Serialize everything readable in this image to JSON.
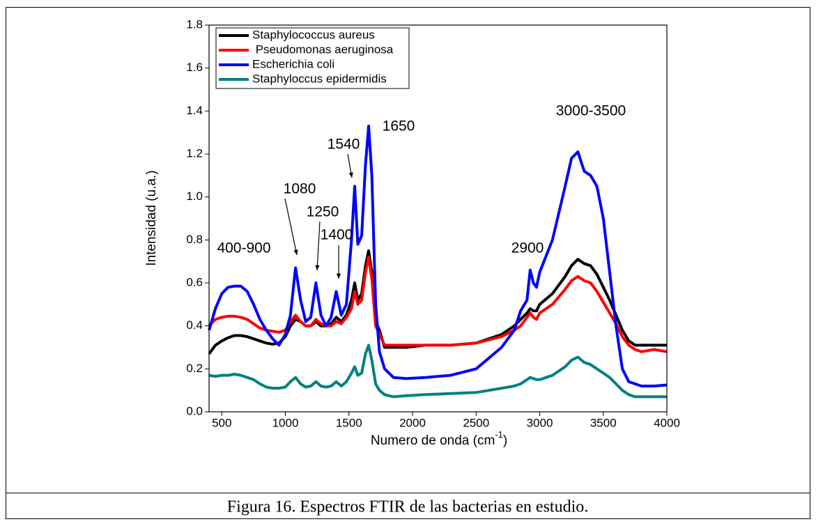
{
  "chart_data": {
    "type": "line",
    "caption": "Figura 16. Espectros FTIR de las bacterias en estudio.",
    "y_label": "Intensidad (u.a.)",
    "x_label": {
      "text": "Numero de onda (cm",
      "superscript": "-1",
      "suffix": ")"
    },
    "annotations": [
      "400-900",
      "1080",
      "1250",
      "1400",
      "1540",
      "1650",
      "2900",
      "3000-3500"
    ],
    "xlim": [
      400,
      4000
    ],
    "xticks": [
      500,
      1000,
      1500,
      2000,
      2500,
      3000,
      3500,
      4000
    ],
    "ylim": [
      0,
      1.8
    ],
    "yticks": [
      {
        "value": 0,
        "label": "0.0"
      },
      0.2,
      0.4,
      0.6,
      0.8,
      {
        "value": 1,
        "label": "1.0"
      },
      1.2,
      1.4,
      1.6,
      1.8
    ],
    "legend": "upper left",
    "x": [
      400,
      450,
      500,
      550,
      600,
      650,
      700,
      750,
      800,
      850,
      900,
      950,
      1000,
      1040,
      1080,
      1120,
      1160,
      1200,
      1240,
      1280,
      1320,
      1360,
      1400,
      1440,
      1480,
      1520,
      1545,
      1570,
      1600,
      1630,
      1655,
      1680,
      1710,
      1740,
      1780,
      1850,
      1950,
      2100,
      2300,
      2500,
      2700,
      2800,
      2850,
      2900,
      2925,
      2950,
      2975,
      3000,
      3100,
      3200,
      3250,
      3300,
      3350,
      3400,
      3450,
      3500,
      3550,
      3600,
      3650,
      3700,
      3750,
      3800,
      3900,
      4000
    ],
    "series": [
      {
        "name": "Staphylococcus aureus",
        "color": "#000000",
        "values": [
          0.27,
          0.31,
          0.33,
          0.345,
          0.355,
          0.355,
          0.35,
          0.34,
          0.33,
          0.32,
          0.315,
          0.32,
          0.35,
          0.4,
          0.43,
          0.42,
          0.4,
          0.4,
          0.42,
          0.4,
          0.4,
          0.41,
          0.44,
          0.42,
          0.45,
          0.52,
          0.6,
          0.52,
          0.55,
          0.68,
          0.75,
          0.65,
          0.42,
          0.38,
          0.3,
          0.3,
          0.3,
          0.31,
          0.31,
          0.32,
          0.36,
          0.4,
          0.43,
          0.46,
          0.48,
          0.47,
          0.47,
          0.5,
          0.55,
          0.63,
          0.68,
          0.71,
          0.69,
          0.68,
          0.64,
          0.58,
          0.52,
          0.45,
          0.38,
          0.33,
          0.31,
          0.31,
          0.31,
          0.31
        ]
      },
      {
        "name": " Pseudomonas aeruginosa",
        "color": "#ff0000",
        "values": [
          0.4,
          0.43,
          0.44,
          0.445,
          0.445,
          0.44,
          0.43,
          0.41,
          0.39,
          0.38,
          0.375,
          0.37,
          0.38,
          0.42,
          0.45,
          0.42,
          0.4,
          0.4,
          0.43,
          0.41,
          0.4,
          0.4,
          0.42,
          0.41,
          0.44,
          0.48,
          0.56,
          0.5,
          0.52,
          0.65,
          0.72,
          0.62,
          0.4,
          0.36,
          0.31,
          0.31,
          0.31,
          0.31,
          0.31,
          0.32,
          0.35,
          0.38,
          0.4,
          0.44,
          0.46,
          0.44,
          0.43,
          0.46,
          0.5,
          0.57,
          0.61,
          0.63,
          0.61,
          0.6,
          0.56,
          0.51,
          0.46,
          0.41,
          0.35,
          0.31,
          0.29,
          0.28,
          0.29,
          0.28
        ]
      },
      {
        "name": "Escherichia coli",
        "color": "#0000ff",
        "values": [
          0.38,
          0.48,
          0.55,
          0.58,
          0.585,
          0.585,
          0.56,
          0.5,
          0.43,
          0.38,
          0.34,
          0.31,
          0.36,
          0.45,
          0.67,
          0.52,
          0.42,
          0.44,
          0.6,
          0.45,
          0.4,
          0.44,
          0.56,
          0.45,
          0.5,
          0.8,
          1.05,
          0.78,
          0.82,
          1.15,
          1.33,
          1.1,
          0.5,
          0.28,
          0.2,
          0.16,
          0.155,
          0.16,
          0.17,
          0.2,
          0.3,
          0.38,
          0.47,
          0.52,
          0.66,
          0.6,
          0.58,
          0.65,
          0.8,
          1.05,
          1.18,
          1.21,
          1.12,
          1.1,
          1.05,
          0.9,
          0.65,
          0.4,
          0.2,
          0.14,
          0.13,
          0.12,
          0.12,
          0.125
        ]
      },
      {
        "name": "Staphyloccus epidermidis",
        "color": "#008080",
        "values": [
          0.17,
          0.165,
          0.17,
          0.17,
          0.175,
          0.17,
          0.16,
          0.15,
          0.13,
          0.115,
          0.11,
          0.11,
          0.115,
          0.14,
          0.16,
          0.13,
          0.115,
          0.12,
          0.14,
          0.12,
          0.115,
          0.12,
          0.14,
          0.12,
          0.14,
          0.18,
          0.21,
          0.17,
          0.18,
          0.27,
          0.31,
          0.24,
          0.13,
          0.1,
          0.08,
          0.07,
          0.075,
          0.08,
          0.085,
          0.09,
          0.11,
          0.12,
          0.13,
          0.15,
          0.16,
          0.155,
          0.15,
          0.15,
          0.17,
          0.21,
          0.24,
          0.255,
          0.23,
          0.22,
          0.2,
          0.18,
          0.16,
          0.13,
          0.1,
          0.08,
          0.07,
          0.07,
          0.07,
          0.07
        ]
      }
    ]
  }
}
